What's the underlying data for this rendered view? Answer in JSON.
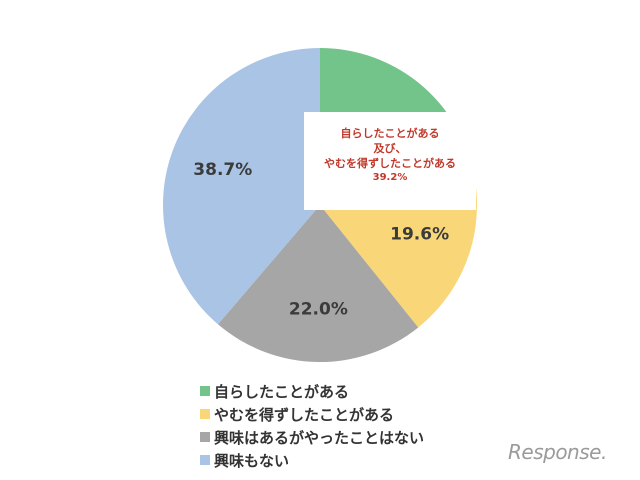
{
  "chart_data": {
    "type": "pie",
    "slices": [
      {
        "label": "自らしたことがある",
        "value": 19.6,
        "color": "#72c48a",
        "show_label": false
      },
      {
        "label": "やむを得ずしたことがある",
        "value": 19.6,
        "color": "#f9d779",
        "show_label": true,
        "display": "19.6%"
      },
      {
        "label": "興味はあるがやったことはない",
        "value": 22.0,
        "color": "#a6a6a6",
        "show_label": true,
        "display": "22.0%"
      },
      {
        "label": "興味もない",
        "value": 38.7,
        "color": "#a9c4e5",
        "show_label": true,
        "display": "38.7%"
      }
    ],
    "start_angle_deg": 0,
    "direction": "clockwise",
    "callout": {
      "lines": [
        "自らしたことがある",
        "及び、",
        "やむを得ずしたことがある"
      ],
      "value": "39.2%",
      "color": "#c0392b"
    },
    "legend": [
      {
        "label": "自らしたことがある",
        "color": "#72c48a"
      },
      {
        "label": "やむを得ずしたことがある",
        "color": "#f9d779"
      },
      {
        "label": "興味はあるがやったことはない",
        "color": "#a6a6a6"
      },
      {
        "label": "興味もない",
        "color": "#a9c4e5"
      }
    ],
    "legend_position": "bottom"
  },
  "brand": {
    "text": "Response."
  }
}
